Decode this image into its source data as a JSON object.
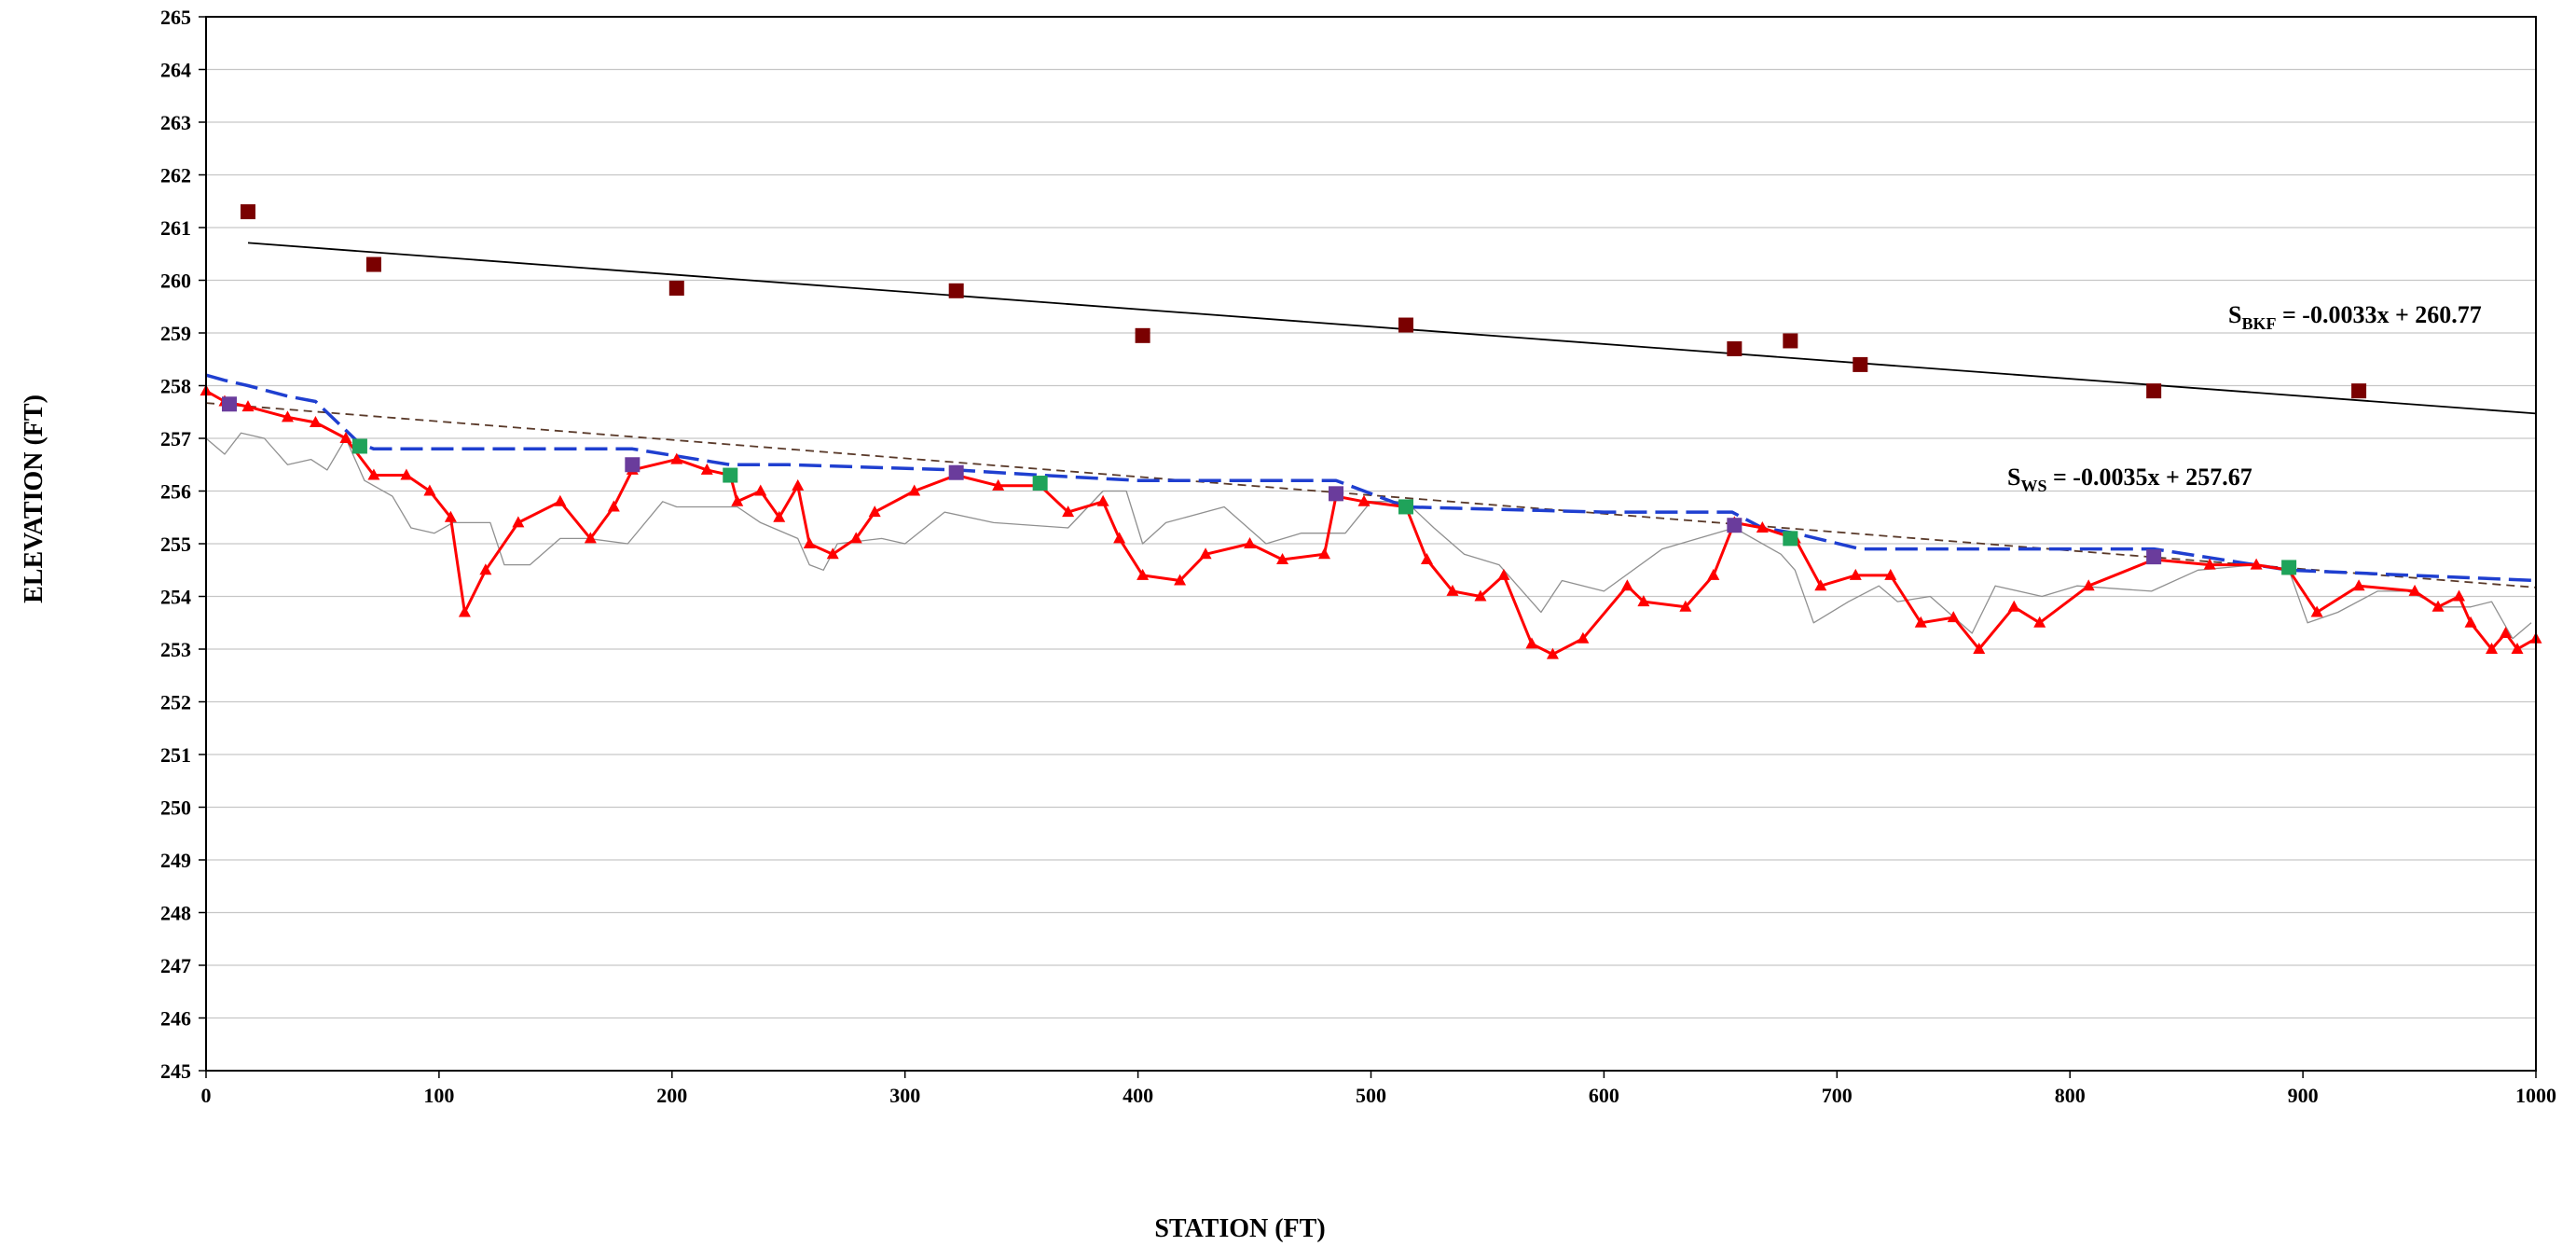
{
  "chart_data": {
    "type": "line",
    "xlabel": "STATION (FT)",
    "ylabel": "ELEVATION (FT)",
    "xlim": [
      0,
      1000
    ],
    "ylim": [
      245,
      265
    ],
    "x_ticks": [
      "0",
      "100",
      "200",
      "300",
      "400",
      "500",
      "600",
      "700",
      "800",
      "900",
      "1000"
    ],
    "y_ticks": [
      "245",
      "246",
      "247",
      "248",
      "249",
      "250",
      "251",
      "252",
      "253",
      "254",
      "255",
      "256",
      "257",
      "258",
      "259",
      "260",
      "261",
      "262",
      "263",
      "264",
      "265"
    ],
    "grid": true,
    "legend": "none",
    "annotations": [
      {
        "id": "bkf",
        "base": "S",
        "sub": "BKF",
        "rest": " = -0.0033x + 260.77"
      },
      {
        "id": "ws",
        "base": "S",
        "sub": "WS",
        "rest": " = -0.0035x + 257.67"
      }
    ],
    "series": [
      {
        "id": "thalweg",
        "marker": "triangle",
        "color": "#ff0000",
        "points": [
          [
            0,
            257.9
          ],
          [
            8,
            257.7
          ],
          [
            18,
            257.6
          ],
          [
            35,
            257.4
          ],
          [
            47,
            257.3
          ],
          [
            60,
            257.0
          ],
          [
            72,
            256.3
          ],
          [
            86,
            256.3
          ],
          [
            96,
            256.0
          ],
          [
            105,
            255.5
          ],
          [
            111,
            253.7
          ],
          [
            120,
            254.5
          ],
          [
            134,
            255.4
          ],
          [
            152,
            255.8
          ],
          [
            165,
            255.1
          ],
          [
            175,
            255.7
          ],
          [
            183,
            256.4
          ],
          [
            202,
            256.6
          ],
          [
            215,
            256.4
          ],
          [
            225,
            256.3
          ],
          [
            228,
            255.8
          ],
          [
            238,
            256.0
          ],
          [
            246,
            255.5
          ],
          [
            254,
            256.1
          ],
          [
            259,
            255.0
          ],
          [
            269,
            254.8
          ],
          [
            279,
            255.1
          ],
          [
            287,
            255.6
          ],
          [
            304,
            256.0
          ],
          [
            322,
            256.3
          ],
          [
            340,
            256.1
          ],
          [
            358,
            256.1
          ],
          [
            370,
            255.6
          ],
          [
            385,
            255.8
          ],
          [
            392,
            255.1
          ],
          [
            402,
            254.4
          ],
          [
            418,
            254.3
          ],
          [
            429,
            254.8
          ],
          [
            448,
            255.0
          ],
          [
            462,
            254.7
          ],
          [
            480,
            254.8
          ],
          [
            485,
            255.9
          ],
          [
            497,
            255.8
          ],
          [
            515,
            255.7
          ],
          [
            524,
            254.7
          ],
          [
            535,
            254.1
          ],
          [
            547,
            254.0
          ],
          [
            557,
            254.4
          ],
          [
            569,
            253.1
          ],
          [
            578,
            252.9
          ],
          [
            591,
            253.2
          ],
          [
            610,
            254.2
          ],
          [
            617,
            253.9
          ],
          [
            635,
            253.8
          ],
          [
            647,
            254.4
          ],
          [
            656,
            255.4
          ],
          [
            668,
            255.3
          ],
          [
            682,
            255.1
          ],
          [
            693,
            254.2
          ],
          [
            708,
            254.4
          ],
          [
            723,
            254.4
          ],
          [
            736,
            253.5
          ],
          [
            750,
            253.6
          ],
          [
            761,
            253.0
          ],
          [
            776,
            253.8
          ],
          [
            787,
            253.5
          ],
          [
            808,
            254.2
          ],
          [
            836,
            254.7
          ],
          [
            860,
            254.6
          ],
          [
            880,
            254.6
          ],
          [
            894,
            254.5
          ],
          [
            906,
            253.7
          ],
          [
            924,
            254.2
          ],
          [
            948,
            254.1
          ],
          [
            958,
            253.8
          ],
          [
            967,
            254.0
          ],
          [
            972,
            253.5
          ],
          [
            981,
            253.0
          ],
          [
            987,
            253.3
          ],
          [
            992,
            253.0
          ],
          [
            1000,
            253.2
          ]
        ]
      },
      {
        "id": "water-surface",
        "style": "long-dash",
        "color": "#1f3fd0",
        "points": [
          [
            0,
            258.2
          ],
          [
            8,
            258.1
          ],
          [
            18,
            258.0
          ],
          [
            35,
            257.8
          ],
          [
            47,
            257.7
          ],
          [
            66,
            256.9
          ],
          [
            72,
            256.8
          ],
          [
            183,
            256.8
          ],
          [
            225,
            256.5
          ],
          [
            250,
            256.5
          ],
          [
            322,
            256.4
          ],
          [
            358,
            256.3
          ],
          [
            400,
            256.2
          ],
          [
            485,
            256.2
          ],
          [
            515,
            255.7
          ],
          [
            600,
            255.6
          ],
          [
            655,
            255.6
          ],
          [
            668,
            255.3
          ],
          [
            682,
            255.2
          ],
          [
            710,
            254.9
          ],
          [
            836,
            254.9
          ],
          [
            894,
            254.5
          ],
          [
            1000,
            254.3
          ]
        ]
      },
      {
        "id": "ground-profile",
        "style": "solid-thin",
        "color": "#909090",
        "points": [
          [
            0,
            257.0
          ],
          [
            8,
            256.7
          ],
          [
            15,
            257.1
          ],
          [
            25,
            257.0
          ],
          [
            35,
            256.5
          ],
          [
            45,
            256.6
          ],
          [
            52,
            256.4
          ],
          [
            60,
            257.0
          ],
          [
            68,
            256.2
          ],
          [
            80,
            255.9
          ],
          [
            88,
            255.3
          ],
          [
            98,
            255.2
          ],
          [
            106,
            255.4
          ],
          [
            122,
            255.4
          ],
          [
            128,
            254.6
          ],
          [
            139,
            254.6
          ],
          [
            152,
            255.1
          ],
          [
            164,
            255.1
          ],
          [
            181,
            255.0
          ],
          [
            196,
            255.8
          ],
          [
            202,
            255.7
          ],
          [
            215,
            255.7
          ],
          [
            228,
            255.7
          ],
          [
            238,
            255.4
          ],
          [
            254,
            255.1
          ],
          [
            259,
            254.6
          ],
          [
            265,
            254.5
          ],
          [
            271,
            255.0
          ],
          [
            290,
            255.1
          ],
          [
            300,
            255.0
          ],
          [
            317,
            255.6
          ],
          [
            338,
            255.4
          ],
          [
            370,
            255.3
          ],
          [
            385,
            256.0
          ],
          [
            395,
            256.0
          ],
          [
            402,
            255.0
          ],
          [
            412,
            255.4
          ],
          [
            437,
            255.7
          ],
          [
            455,
            255.0
          ],
          [
            470,
            255.2
          ],
          [
            489,
            255.2
          ],
          [
            500,
            255.8
          ],
          [
            515,
            255.8
          ],
          [
            527,
            255.3
          ],
          [
            540,
            254.8
          ],
          [
            555,
            254.6
          ],
          [
            573,
            253.7
          ],
          [
            582,
            254.3
          ],
          [
            600,
            254.1
          ],
          [
            625,
            254.9
          ],
          [
            656,
            255.3
          ],
          [
            676,
            254.8
          ],
          [
            682,
            254.5
          ],
          [
            690,
            253.5
          ],
          [
            705,
            253.9
          ],
          [
            718,
            254.2
          ],
          [
            726,
            253.9
          ],
          [
            740,
            254.0
          ],
          [
            758,
            253.3
          ],
          [
            768,
            254.2
          ],
          [
            788,
            254.0
          ],
          [
            803,
            254.2
          ],
          [
            835,
            254.1
          ],
          [
            855,
            254.5
          ],
          [
            880,
            254.6
          ],
          [
            894,
            254.5
          ],
          [
            902,
            253.5
          ],
          [
            915,
            253.7
          ],
          [
            932,
            254.1
          ],
          [
            945,
            254.1
          ],
          [
            960,
            253.8
          ],
          [
            972,
            253.8
          ],
          [
            981,
            253.9
          ],
          [
            990,
            253.2
          ],
          [
            998,
            253.5
          ]
        ]
      },
      {
        "id": "ws-trend",
        "style": "short-dash",
        "color": "#5a3a2a",
        "points": [
          [
            0,
            257.67
          ],
          [
            1000,
            254.17
          ]
        ]
      },
      {
        "id": "bkf-trend",
        "style": "solid",
        "color": "#000000",
        "points": [
          [
            18,
            260.71
          ],
          [
            1000,
            257.47
          ]
        ]
      }
    ],
    "marker_sets": [
      {
        "id": "bankfull",
        "marker": "square",
        "color": "#7a0000",
        "points": [
          [
            18,
            261.3
          ],
          [
            72,
            260.3
          ],
          [
            202,
            259.85
          ],
          [
            322,
            259.8
          ],
          [
            402,
            258.95
          ],
          [
            515,
            259.15
          ],
          [
            656,
            258.7
          ],
          [
            680,
            258.85
          ],
          [
            710,
            258.4
          ],
          [
            836,
            257.9
          ],
          [
            924,
            257.9
          ]
        ]
      },
      {
        "id": "pool-markers",
        "marker": "square",
        "color": "#6a3c9c",
        "points": [
          [
            10,
            257.65
          ],
          [
            183,
            256.5
          ],
          [
            322,
            256.35
          ],
          [
            485,
            255.95
          ],
          [
            656,
            255.35
          ],
          [
            836,
            254.75
          ]
        ]
      },
      {
        "id": "riffle-markers",
        "marker": "square",
        "color": "#1fa35a",
        "points": [
          [
            66,
            256.85
          ],
          [
            225,
            256.3
          ],
          [
            358,
            256.15
          ],
          [
            515,
            255.7
          ],
          [
            680,
            255.1
          ],
          [
            894,
            254.55
          ]
        ]
      }
    ]
  }
}
